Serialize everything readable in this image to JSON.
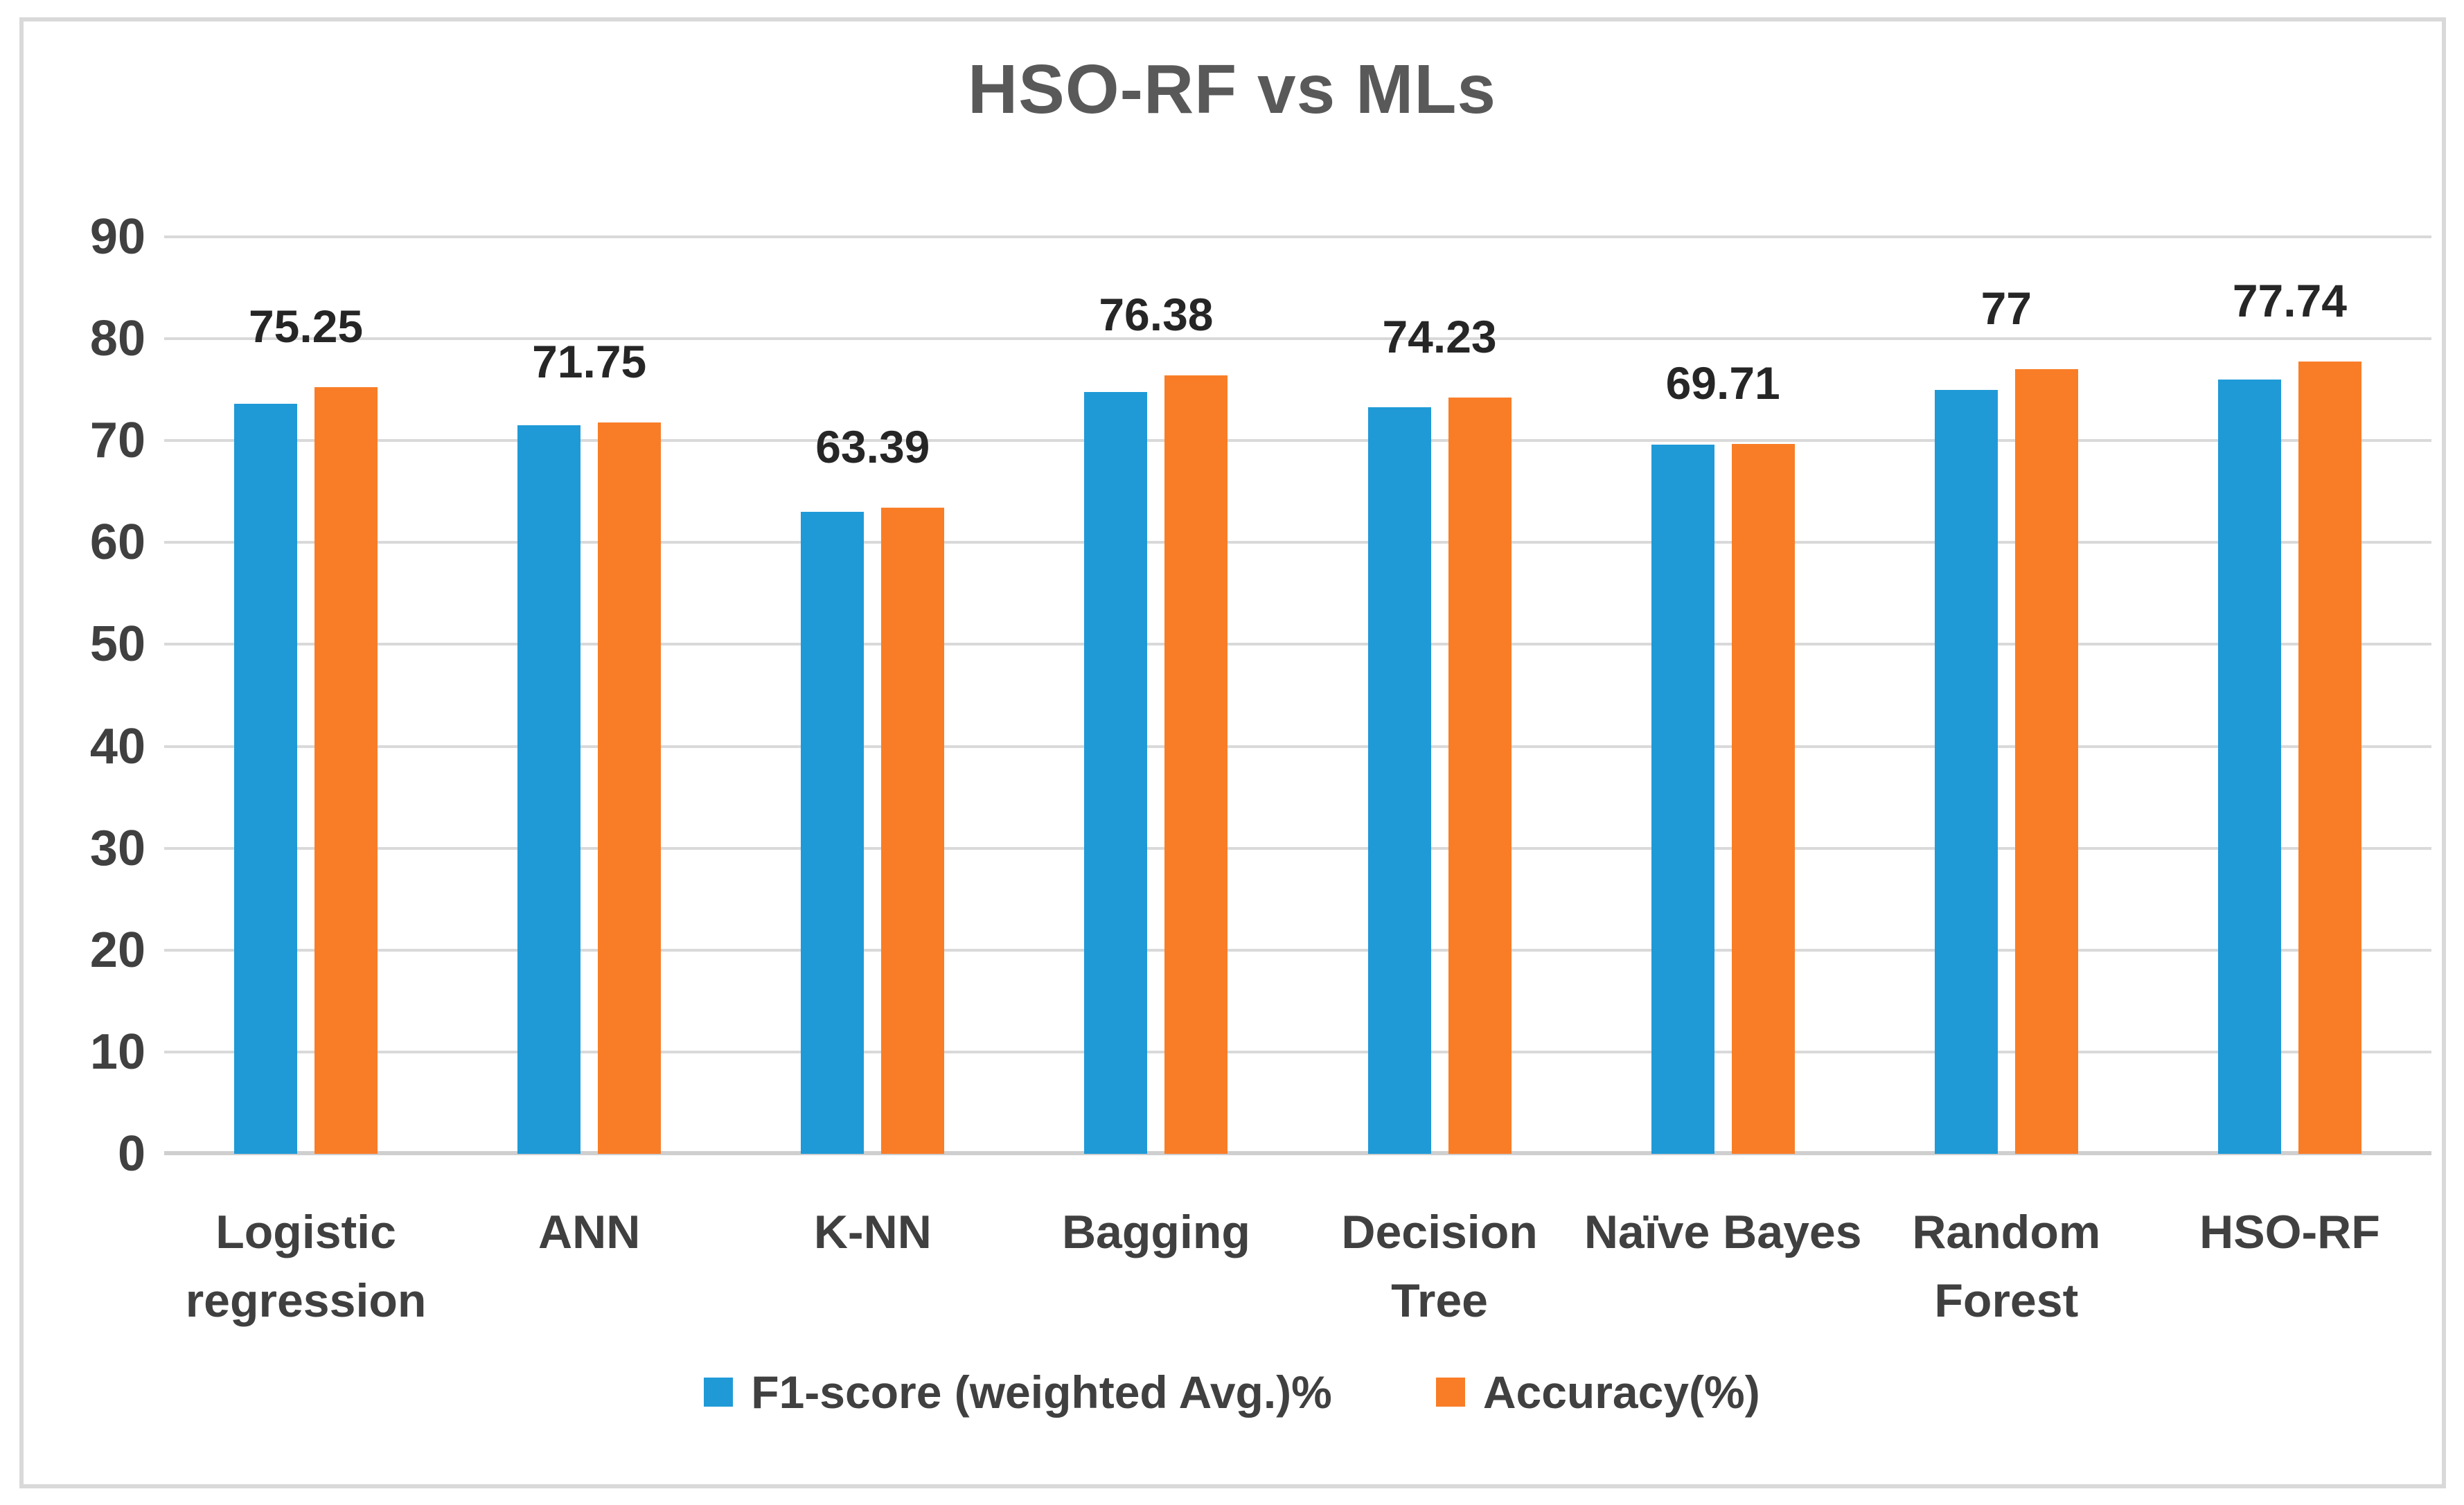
{
  "title": "HSO-RF vs MLs",
  "colors": {
    "blue_series": "#1f9ad7",
    "orange_series": "#f97d27",
    "gridline": "#d9d9d9",
    "axis_line": "#cfcfcf",
    "title_text": "#595959",
    "tick_text": "#404040",
    "data_label_text": "#262626",
    "figure_border": "#d9d9d9"
  },
  "chart_data": {
    "type": "bar",
    "title": "HSO-RF vs MLs",
    "categories": [
      "Logistic\nregression",
      "ANN",
      "K-NN",
      "Bagging",
      "Decision\nTree",
      "Naïve Bayes",
      "Random\nForest",
      "HSO-RF"
    ],
    "series": [
      {
        "name": "F1-score (weighted Avg.)%",
        "color": "#1f9ad7",
        "values": [
          73.6,
          71.5,
          63.0,
          74.8,
          73.3,
          69.6,
          75.0,
          76.0
        ]
      },
      {
        "name": "Accuracy(%)",
        "color": "#f97d27",
        "values": [
          75.25,
          71.75,
          63.39,
          76.38,
          74.23,
          69.71,
          77,
          77.74
        ]
      }
    ],
    "data_labels": [
      "75.25",
      "71.75",
      "63.39",
      "76.38",
      "74.23",
      "69.71",
      "77",
      "77.74"
    ],
    "yticks": [
      "0",
      "10",
      "20",
      "30",
      "40",
      "50",
      "60",
      "70",
      "80",
      "90"
    ],
    "ylim": [
      0,
      90
    ],
    "grid": true,
    "legend_position": "bottom"
  }
}
